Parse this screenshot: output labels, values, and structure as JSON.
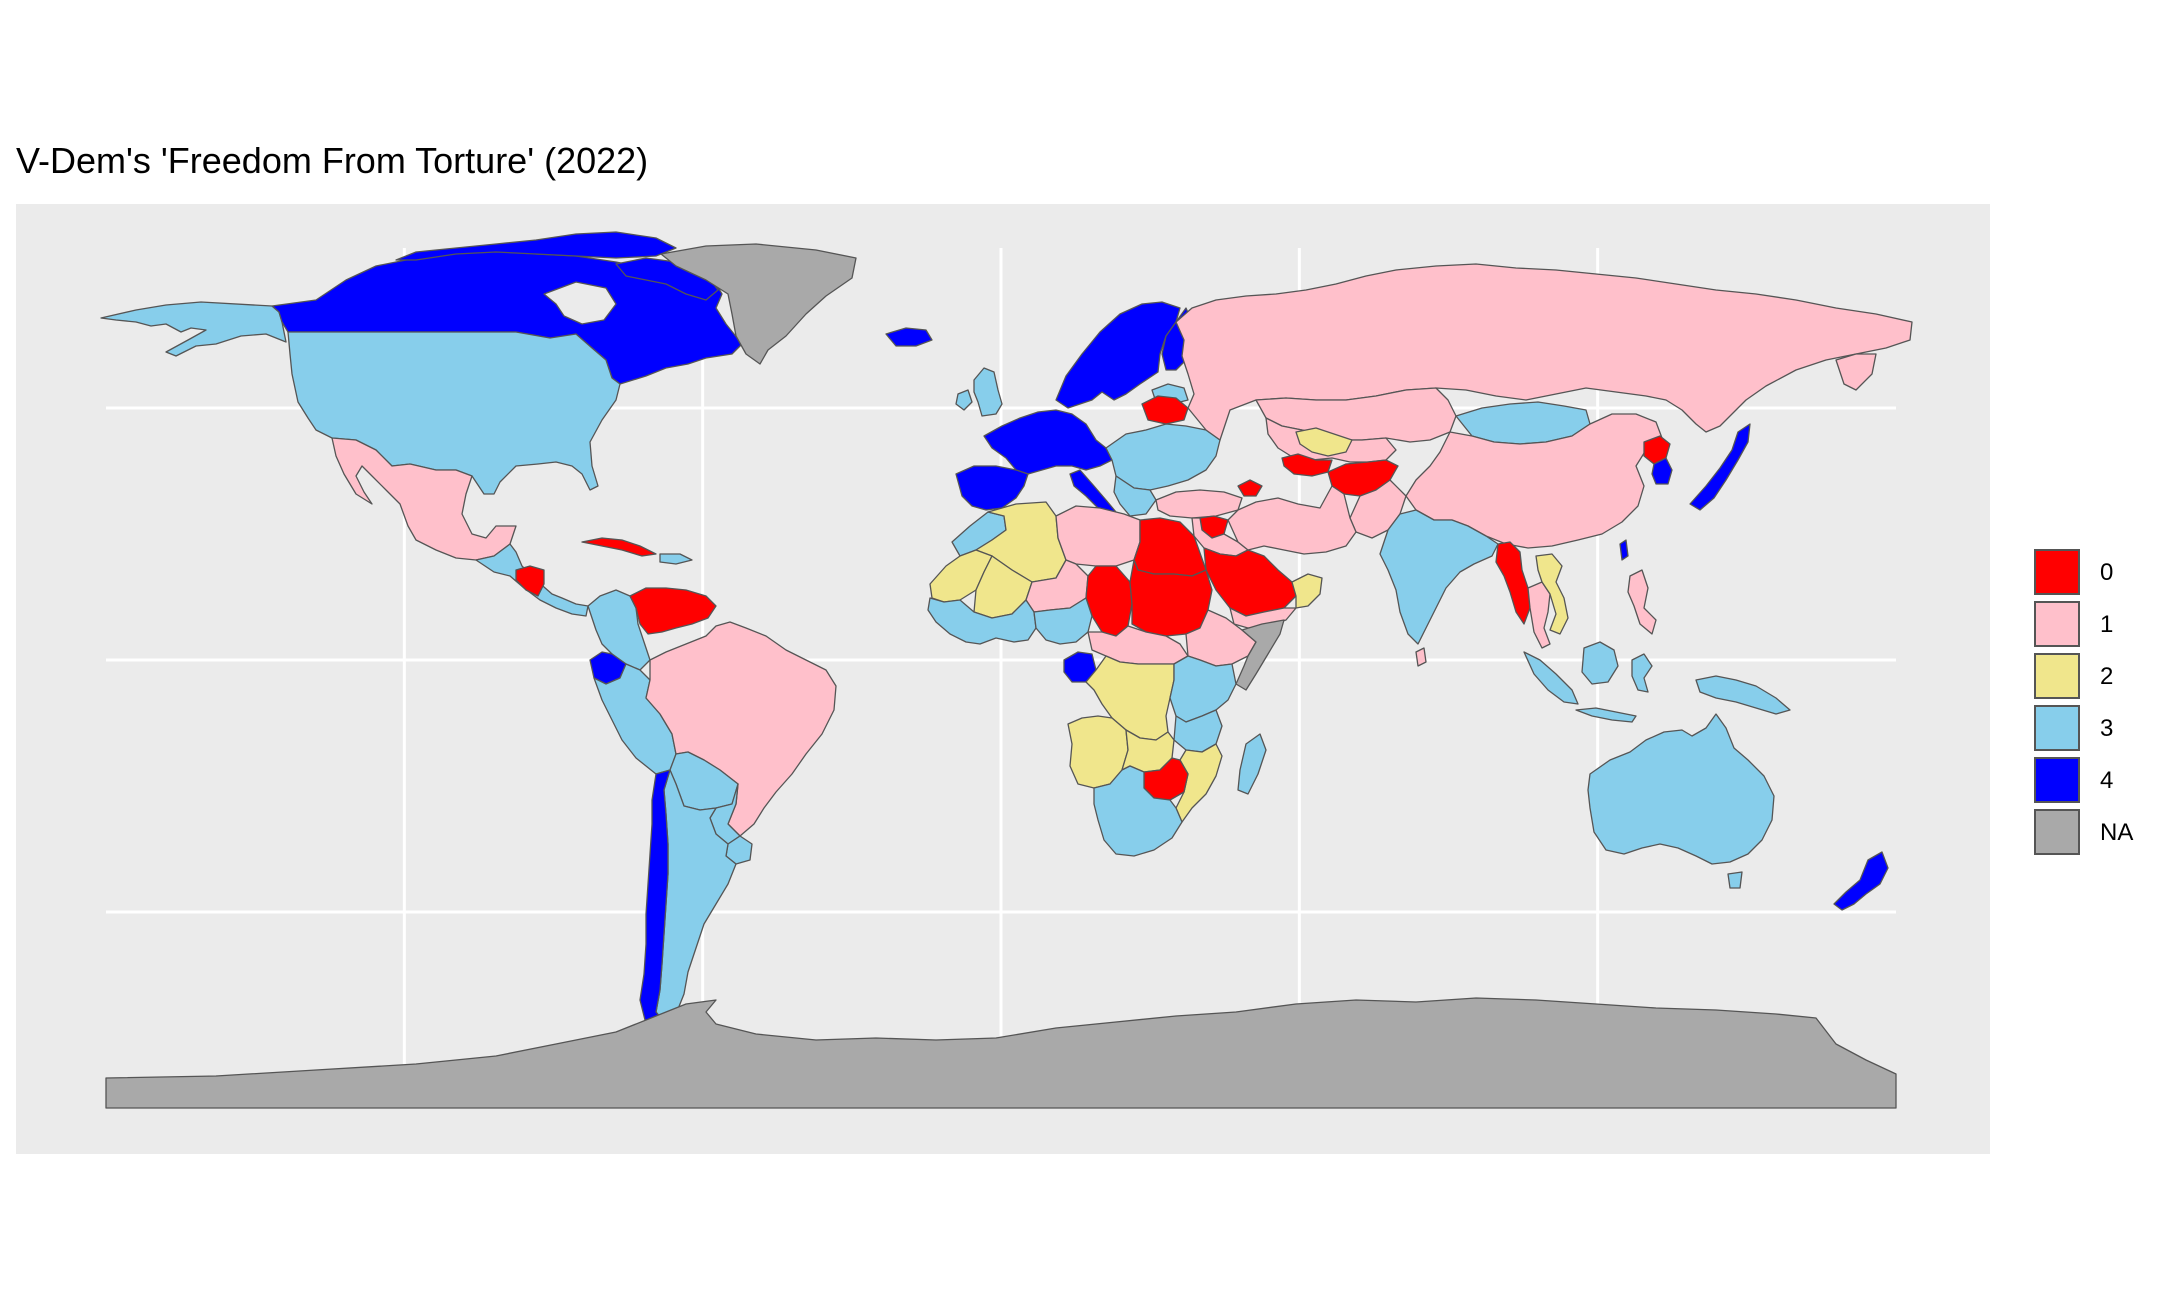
{
  "title": "V-Dem's 'Freedom From Torture' (2022)",
  "legend": {
    "items": [
      {
        "label": "0",
        "color": "#ff0000"
      },
      {
        "label": "1",
        "color": "#ffc0cb"
      },
      {
        "label": "2",
        "color": "#f0e68c"
      },
      {
        "label": "3",
        "color": "#87ceeb"
      },
      {
        "label": "4",
        "color": "#0000ff"
      },
      {
        "label": "NA",
        "color": "#a9a9a9"
      }
    ]
  },
  "colors": {
    "panel_background": "#ebebeb",
    "gridline": "#ffffff",
    "country_border": "#555555"
  },
  "map": {
    "projection": "equirectangular",
    "graticule": {
      "longitudes": [
        -120,
        -60,
        0,
        60,
        120
      ],
      "latitudes": [
        -60,
        0,
        60
      ]
    },
    "regions": [
      {
        "name": "Canada",
        "value": 4
      },
      {
        "name": "United States",
        "value": 3
      },
      {
        "name": "Alaska",
        "value": 3
      },
      {
        "name": "Greenland",
        "value": "NA"
      },
      {
        "name": "Mexico",
        "value": 1
      },
      {
        "name": "Cuba",
        "value": 0
      },
      {
        "name": "Nicaragua",
        "value": 0
      },
      {
        "name": "Central America",
        "value": 3
      },
      {
        "name": "Venezuela",
        "value": 0
      },
      {
        "name": "Colombia",
        "value": 3
      },
      {
        "name": "Ecuador",
        "value": 4
      },
      {
        "name": "Peru",
        "value": 3
      },
      {
        "name": "Brazil",
        "value": 1
      },
      {
        "name": "Bolivia",
        "value": 3
      },
      {
        "name": "Paraguay",
        "value": 3
      },
      {
        "name": "Chile",
        "value": 4
      },
      {
        "name": "Argentina",
        "value": 3
      },
      {
        "name": "Uruguay",
        "value": 3
      },
      {
        "name": "Iceland",
        "value": 4
      },
      {
        "name": "United Kingdom",
        "value": 3
      },
      {
        "name": "Scandinavia",
        "value": 4
      },
      {
        "name": "Western Europe",
        "value": 4
      },
      {
        "name": "Spain and Portugal",
        "value": 4
      },
      {
        "name": "Belarus",
        "value": 0
      },
      {
        "name": "Eastern Europe",
        "value": 3
      },
      {
        "name": "Russia",
        "value": 1
      },
      {
        "name": "Turkey",
        "value": 1
      },
      {
        "name": "Kazakhstan",
        "value": 1
      },
      {
        "name": "Central Asia",
        "value": 1
      },
      {
        "name": "Uzbekistan",
        "value": 2
      },
      {
        "name": "Afghanistan",
        "value": 0
      },
      {
        "name": "Turkmenistan",
        "value": 0
      },
      {
        "name": "Syria",
        "value": 0
      },
      {
        "name": "Iran",
        "value": 1
      },
      {
        "name": "Saudi Arabia",
        "value": 0
      },
      {
        "name": "Oman",
        "value": 2
      },
      {
        "name": "Yemen",
        "value": 1
      },
      {
        "name": "Egypt",
        "value": 0
      },
      {
        "name": "Sudan",
        "value": 0
      },
      {
        "name": "Chad",
        "value": 0
      },
      {
        "name": "Libya",
        "value": 1
      },
      {
        "name": "Algeria",
        "value": 2
      },
      {
        "name": "Morocco",
        "value": 3
      },
      {
        "name": "Mauritania",
        "value": 2
      },
      {
        "name": "Mali",
        "value": 2
      },
      {
        "name": "Niger",
        "value": 1
      },
      {
        "name": "West Africa",
        "value": 3
      },
      {
        "name": "Nigeria",
        "value": 3
      },
      {
        "name": "Ethiopia",
        "value": 1
      },
      {
        "name": "Somalia",
        "value": "NA"
      },
      {
        "name": "Central Africa",
        "value": 1
      },
      {
        "name": "Gabon",
        "value": 4
      },
      {
        "name": "DR Congo",
        "value": 2
      },
      {
        "name": "Angola",
        "value": 2
      },
      {
        "name": "Tanzania",
        "value": 3
      },
      {
        "name": "Zambia",
        "value": 2
      },
      {
        "name": "Mozambique",
        "value": 2
      },
      {
        "name": "Zimbabwe",
        "value": 0
      },
      {
        "name": "Southern Africa",
        "value": 3
      },
      {
        "name": "Madagascar",
        "value": 3
      },
      {
        "name": "India",
        "value": 3
      },
      {
        "name": "Pakistan",
        "value": 1
      },
      {
        "name": "China",
        "value": 1
      },
      {
        "name": "Mongolia",
        "value": 3
      },
      {
        "name": "Myanmar",
        "value": 0
      },
      {
        "name": "Vietnam",
        "value": 2
      },
      {
        "name": "Thailand",
        "value": 1
      },
      {
        "name": "North Korea",
        "value": 0
      },
      {
        "name": "South Korea",
        "value": 4
      },
      {
        "name": "Japan",
        "value": 4
      },
      {
        "name": "Taiwan",
        "value": 4
      },
      {
        "name": "Philippines",
        "value": 1
      },
      {
        "name": "Indonesia",
        "value": 3
      },
      {
        "name": "Papua New Guinea",
        "value": 3
      },
      {
        "name": "Australia",
        "value": 3
      },
      {
        "name": "New Zealand",
        "value": 4
      },
      {
        "name": "Antarctica",
        "value": "NA"
      }
    ]
  }
}
